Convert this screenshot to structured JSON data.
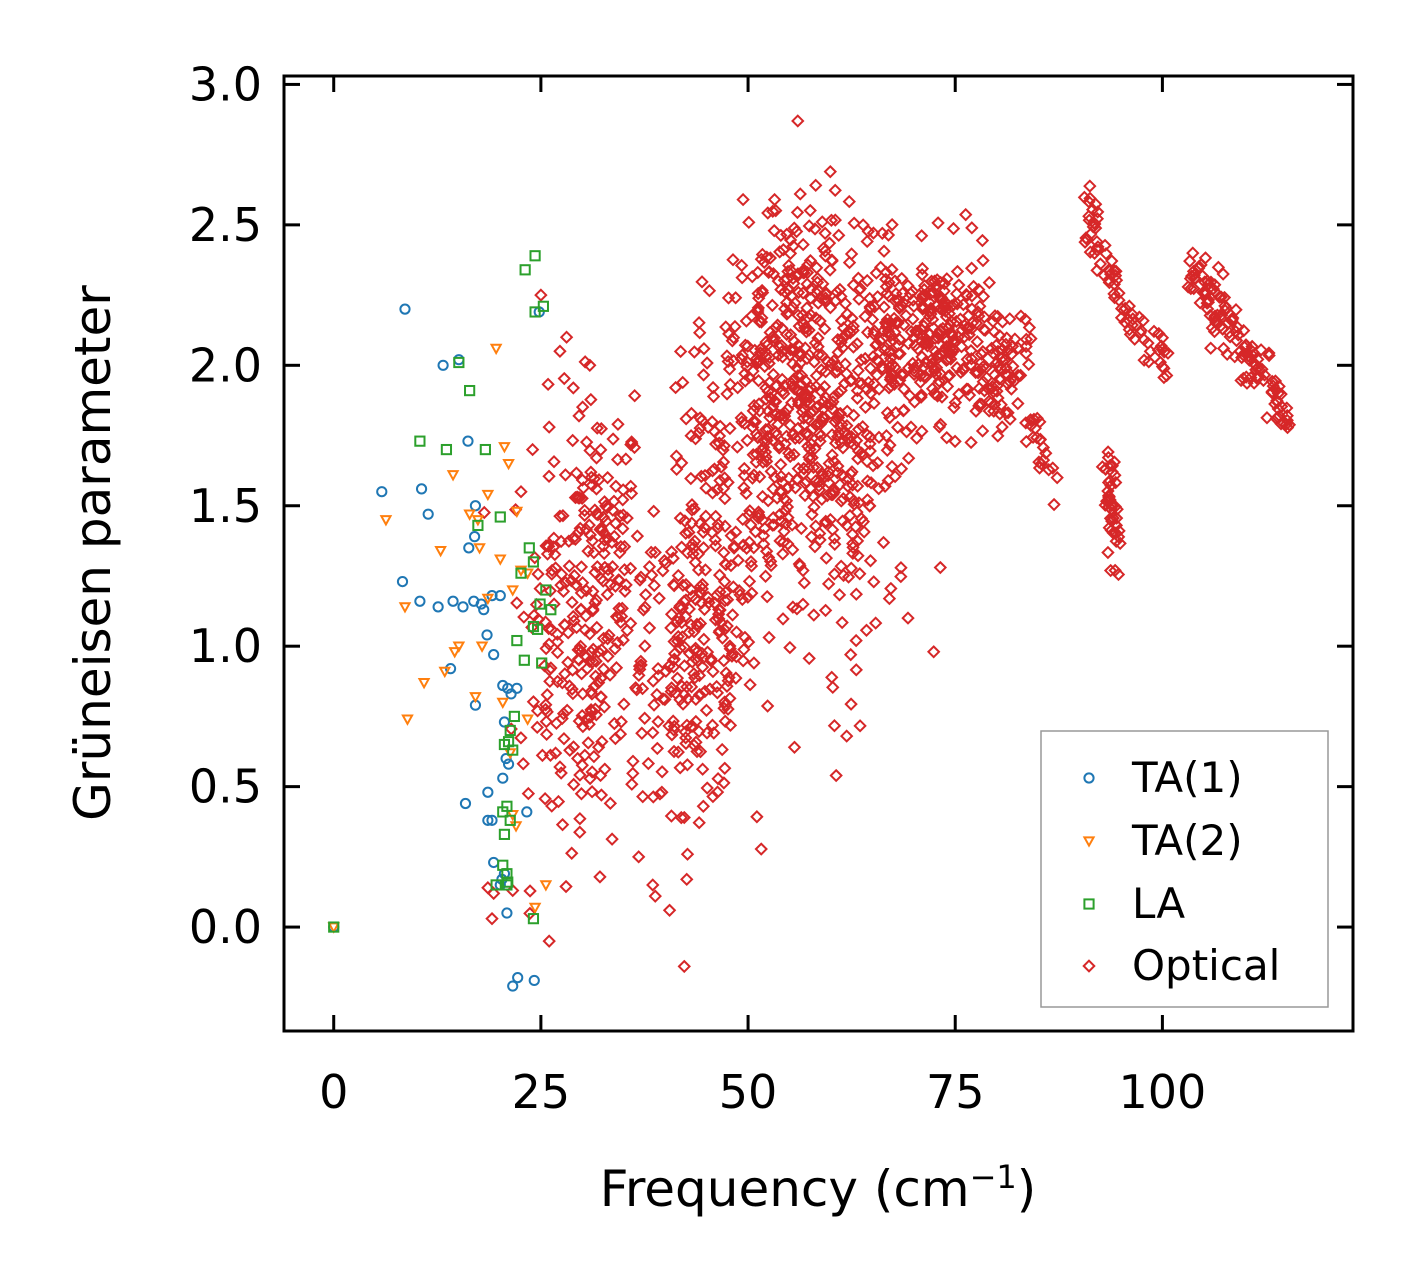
{
  "chart_data": {
    "type": "scatter",
    "xlabel": "Frequency (cm",
    "xlabel_sup": "−1",
    "xlabel_close": ")",
    "ylabel": "Grüneisen parameter",
    "xlim": [
      -6,
      123
    ],
    "ylim": [
      -0.37,
      3.03
    ],
    "xticks": [
      0,
      25,
      50,
      75,
      100
    ],
    "yticks": [
      0.0,
      0.5,
      1.0,
      1.5,
      2.0,
      2.5,
      3.0
    ],
    "xtick_labels": [
      "0",
      "25",
      "50",
      "75",
      "100"
    ],
    "ytick_labels": [
      "0.0",
      "0.5",
      "1.0",
      "1.5",
      "2.0",
      "2.5",
      "3.0"
    ],
    "legend_position": "lower-right",
    "series": [
      {
        "name": "TA(1)",
        "color": "#1f77b4",
        "marker": "circle",
        "points": [
          [
            0,
            0
          ],
          [
            5.8,
            1.55
          ],
          [
            8.6,
            2.2
          ],
          [
            8.3,
            1.23
          ],
          [
            10.4,
            1.16
          ],
          [
            10.6,
            1.56
          ],
          [
            11.4,
            1.47
          ],
          [
            12.6,
            1.14
          ],
          [
            13.2,
            2.0
          ],
          [
            14.1,
            0.92
          ],
          [
            14.4,
            1.16
          ],
          [
            15.1,
            2.02
          ],
          [
            15.6,
            1.14
          ],
          [
            16.2,
            1.73
          ],
          [
            16.3,
            1.35
          ],
          [
            16.9,
            1.16
          ],
          [
            17.0,
            1.39
          ],
          [
            17.1,
            1.5
          ],
          [
            17.8,
            1.15
          ],
          [
            18.1,
            1.13
          ],
          [
            18.5,
            1.04
          ],
          [
            19.1,
            1.18
          ],
          [
            19.3,
            0.97
          ],
          [
            20.1,
            1.18
          ],
          [
            20.4,
            0.86
          ],
          [
            20.6,
            0.73
          ],
          [
            21.0,
            0.85
          ],
          [
            21.4,
            0.83
          ],
          [
            22.1,
            0.85
          ],
          [
            21.1,
            0.58
          ],
          [
            20.8,
            0.6
          ],
          [
            18.6,
            0.48
          ],
          [
            20.4,
            0.53
          ],
          [
            17.1,
            0.79
          ],
          [
            19.1,
            0.38
          ],
          [
            18.6,
            0.38
          ],
          [
            15.9,
            0.44
          ],
          [
            19.3,
            0.23
          ],
          [
            20.3,
            0.17
          ],
          [
            20.6,
            0.19
          ],
          [
            20.1,
            0.15
          ],
          [
            20.9,
            0.05
          ],
          [
            21.6,
            -0.21
          ],
          [
            22.2,
            -0.18
          ],
          [
            24.2,
            -0.19
          ],
          [
            23.3,
            0.41
          ],
          [
            24.8,
            2.19
          ]
        ]
      },
      {
        "name": "TA(2)",
        "color": "#ff7f0e",
        "marker": "triangle-down",
        "points": [
          [
            0,
            0
          ],
          [
            6.3,
            1.45
          ],
          [
            8.6,
            1.14
          ],
          [
            8.9,
            0.74
          ],
          [
            10.9,
            0.87
          ],
          [
            12.9,
            1.34
          ],
          [
            13.4,
            0.91
          ],
          [
            14.4,
            1.61
          ],
          [
            14.6,
            0.98
          ],
          [
            15.1,
            1.0
          ],
          [
            16.4,
            1.47
          ],
          [
            17.4,
            1.45
          ],
          [
            17.6,
            1.35
          ],
          [
            17.1,
            0.82
          ],
          [
            17.9,
            1.0
          ],
          [
            18.6,
            1.54
          ],
          [
            18.6,
            1.17
          ],
          [
            19.6,
            2.06
          ],
          [
            20.1,
            1.31
          ],
          [
            20.6,
            1.71
          ],
          [
            21.1,
            1.65
          ],
          [
            21.6,
            1.2
          ],
          [
            22.1,
            1.48
          ],
          [
            22.6,
            1.27
          ],
          [
            23.4,
            1.26
          ],
          [
            20.4,
            0.8
          ],
          [
            21.3,
            0.62
          ],
          [
            22.0,
            0.36
          ],
          [
            21.6,
            0.4
          ],
          [
            23.4,
            0.74
          ],
          [
            24.3,
            0.07
          ],
          [
            25.6,
            0.15
          ]
        ]
      },
      {
        "name": "LA",
        "color": "#2ca02c",
        "marker": "square",
        "points": [
          [
            0,
            0
          ],
          [
            10.4,
            1.73
          ],
          [
            13.6,
            1.7
          ],
          [
            15.1,
            2.01
          ],
          [
            16.4,
            1.91
          ],
          [
            18.3,
            1.7
          ],
          [
            20.1,
            1.46
          ],
          [
            17.4,
            1.43
          ],
          [
            23.6,
            1.35
          ],
          [
            24.1,
            1.3
          ],
          [
            22.6,
            1.26
          ],
          [
            23.1,
            2.34
          ],
          [
            24.3,
            2.39
          ],
          [
            24.3,
            2.19
          ],
          [
            25.3,
            2.21
          ],
          [
            25.6,
            1.2
          ],
          [
            26.2,
            1.13
          ],
          [
            24.9,
            1.15
          ],
          [
            24.1,
            1.07
          ],
          [
            24.6,
            1.06
          ],
          [
            25.1,
            0.94
          ],
          [
            23.0,
            0.95
          ],
          [
            22.1,
            1.02
          ],
          [
            21.8,
            0.75
          ],
          [
            21.3,
            0.7
          ],
          [
            21.1,
            0.66
          ],
          [
            20.6,
            0.65
          ],
          [
            21.6,
            0.63
          ],
          [
            20.9,
            0.43
          ],
          [
            20.4,
            0.41
          ],
          [
            21.3,
            0.38
          ],
          [
            20.6,
            0.33
          ],
          [
            20.4,
            0.22
          ],
          [
            20.9,
            0.19
          ],
          [
            20.9,
            0.15
          ],
          [
            21.0,
            0.16
          ],
          [
            19.6,
            0.15
          ],
          [
            24.1,
            0.03
          ]
        ]
      },
      {
        "name": "Optical",
        "color": "#d62728",
        "marker": "diamond",
        "clusters": [
          {
            "center": [
              32,
              1.3
            ],
            "spread": [
              3.5,
              0.38
            ],
            "count": 160
          },
          {
            "center": [
              26,
              1.0
            ],
            "spread": [
              3,
              0.55
            ],
            "count": 70
          },
          {
            "center": [
              44,
              0.95
            ],
            "spread": [
              4.5,
              0.35
            ],
            "count": 170
          },
          {
            "center": [
              47,
              1.55
            ],
            "spread": [
              5,
              0.45
            ],
            "count": 120
          },
          {
            "center": [
              53,
              1.75
            ],
            "spread": [
              4.5,
              0.45
            ],
            "count": 220
          },
          {
            "center": [
              58,
              1.9
            ],
            "spread": [
              4,
              0.45
            ],
            "count": 180
          },
          {
            "center": [
              62,
              1.6
            ],
            "spread": [
              4,
              0.45
            ],
            "count": 130
          },
          {
            "center": [
              68,
              2.05
            ],
            "spread": [
              3.5,
              0.25
            ],
            "count": 150
          },
          {
            "center": [
              74,
              2.1
            ],
            "spread": [
              3.5,
              0.2
            ],
            "count": 160
          },
          {
            "center": [
              80,
              2.0
            ],
            "spread": [
              2.5,
              0.15
            ],
            "count": 90
          },
          {
            "center": [
              55,
              2.3
            ],
            "spread": [
              6,
              0.22
            ],
            "count": 70
          },
          {
            "center": [
              38,
              0.8
            ],
            "spread": [
              4,
              0.35
            ],
            "count": 50
          },
          {
            "center": [
              30,
              0.75
            ],
            "spread": [
              3,
              0.3
            ],
            "count": 50
          }
        ],
        "bands": [
          {
            "from": [
              84,
              1.8
            ],
            "to": [
              87,
              1.6
            ],
            "spread": 0.04,
            "count": 20
          },
          {
            "from": [
              90.5,
              2.6
            ],
            "to": [
              95,
              2.2
            ],
            "spread": 0.05,
            "count": 45
          },
          {
            "from": [
              95,
              2.2
            ],
            "to": [
              101,
              2.0
            ],
            "spread": 0.05,
            "count": 35
          },
          {
            "from": [
              93.5,
              1.65
            ],
            "to": [
              94.5,
              1.33
            ],
            "spread": 0.05,
            "count": 45
          },
          {
            "from": [
              103,
              2.35
            ],
            "to": [
              115,
              1.85
            ],
            "spread": 0.06,
            "count": 130
          }
        ],
        "points": [
          [
            56,
            2.87
          ],
          [
            42.3,
            -0.14
          ],
          [
            26,
            -0.05
          ],
          [
            18.6,
            0.14
          ],
          [
            19.1,
            0.03
          ],
          [
            19.3,
            0.12
          ],
          [
            21.6,
            0.13
          ],
          [
            25,
            2.25
          ],
          [
            26,
            1.78
          ],
          [
            22.6,
            1.55
          ],
          [
            24,
            1.7
          ],
          [
            29.6,
            1.82
          ],
          [
            30.9,
            2.0
          ],
          [
            27.3,
            2.05
          ],
          [
            28.1,
            2.1
          ],
          [
            34.3,
            1.79
          ],
          [
            38.8,
            0.11
          ],
          [
            38.5,
            0.15
          ],
          [
            36.8,
            0.25
          ],
          [
            42.6,
            0.17
          ],
          [
            44.6,
            0.43
          ],
          [
            42.3,
            0.39
          ],
          [
            55.6,
            0.64
          ],
          [
            61.9,
            0.68
          ],
          [
            69.3,
            1.1
          ],
          [
            72.4,
            0.98
          ],
          [
            73.2,
            1.28
          ],
          [
            66.2,
            2.47
          ],
          [
            56.3,
            2.61
          ],
          [
            49.4,
            2.59
          ],
          [
            53.2,
            2.59
          ],
          [
            59.3,
            2.47
          ],
          [
            87.3,
            1.6
          ],
          [
            27.3,
            0.57
          ],
          [
            24.6,
            0.77
          ],
          [
            32.3,
            0.47
          ],
          [
            39.6,
            0.48
          ]
        ]
      }
    ]
  }
}
